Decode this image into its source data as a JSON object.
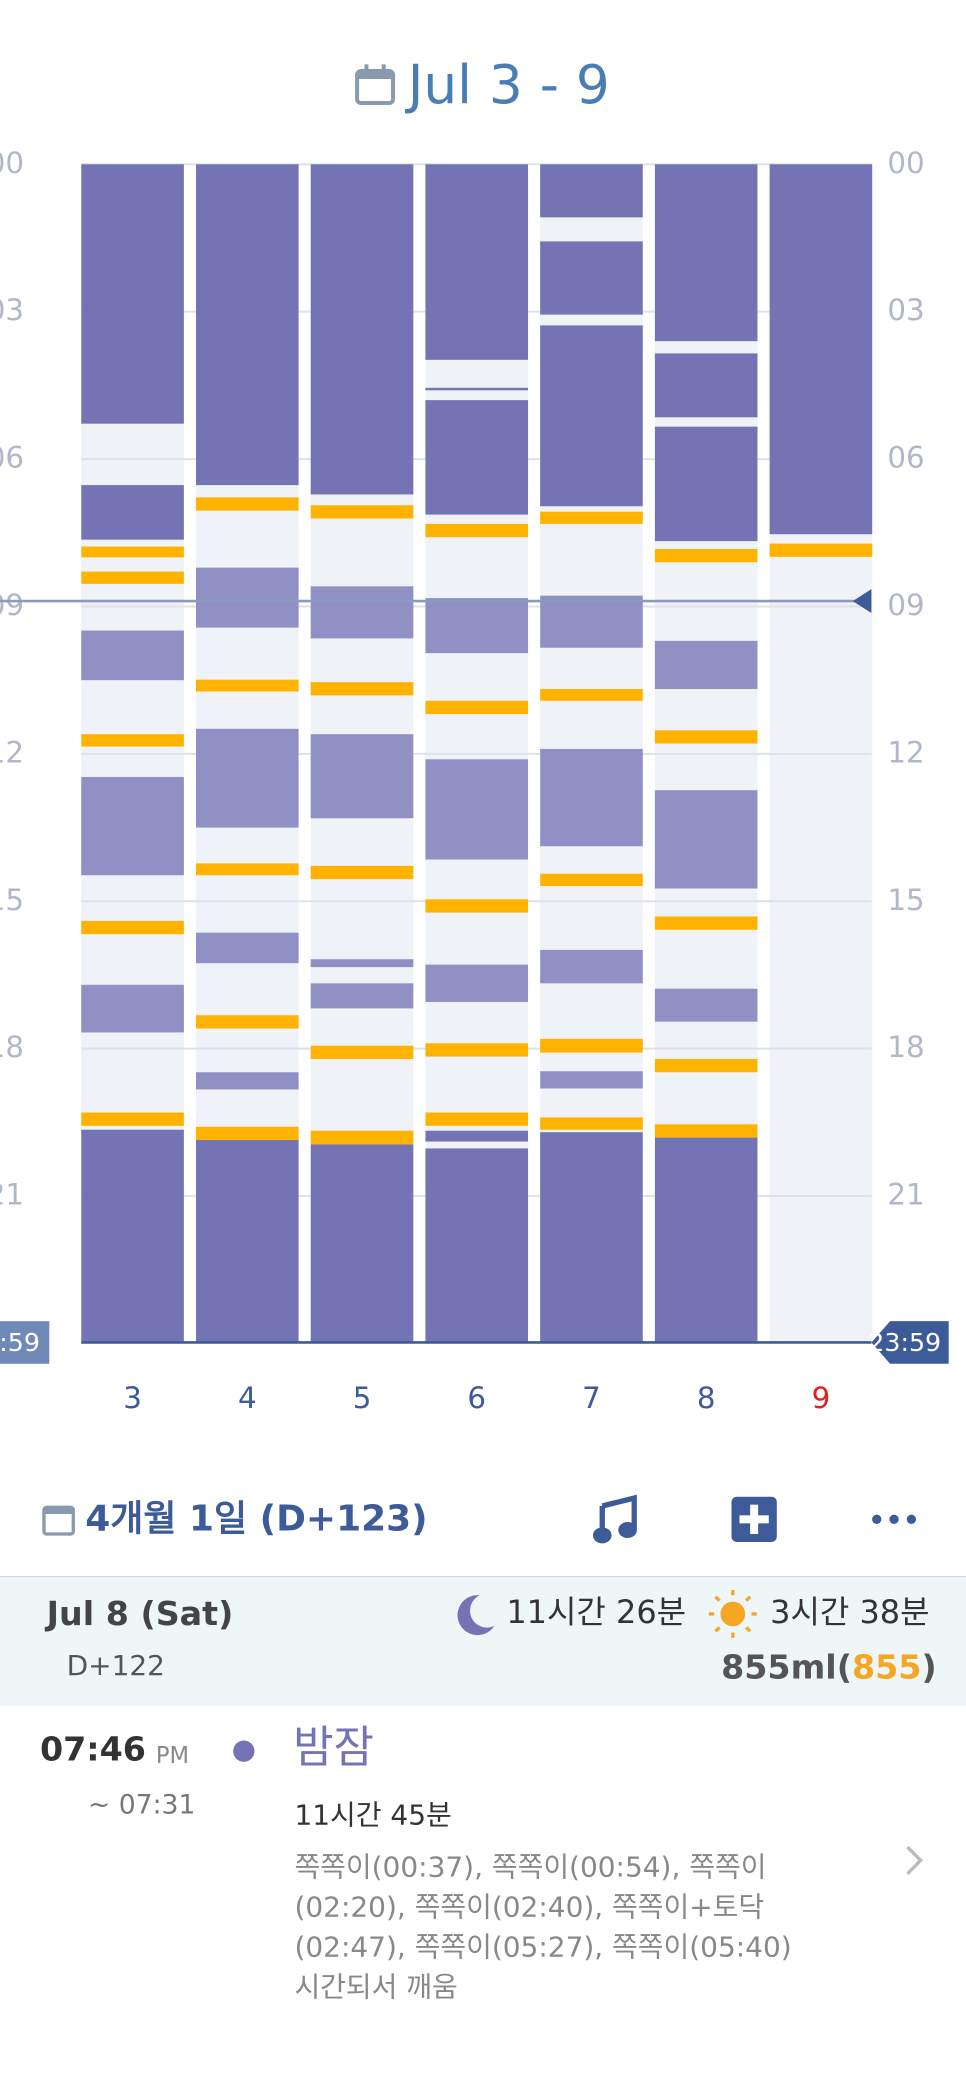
{
  "top": {
    "title": "Jul 3 - 9"
  },
  "chart": {
    "ylim": [
      0,
      24
    ],
    "yticks": [
      {
        "value": 0,
        "label": "00"
      },
      {
        "value": 3,
        "label": "03"
      },
      {
        "value": 6,
        "label": "06"
      },
      {
        "value": 9,
        "label": "09"
      },
      12,
      15,
      18,
      21
    ],
    "end_tick": {
      "value": 23.98,
      "label": "23:59"
    },
    "now": 8.89,
    "colors": {
      "night": "#7474b4",
      "nap": "#9090c4",
      "feed": "#ffb300",
      "background": "#eff2f6",
      "label": "#3d5a99",
      "today": "#e02020"
    },
    "days": [
      {
        "label": "3",
        "segments": [
          [
            "night",
            0,
            5.28
          ],
          [
            "night",
            6.53,
            7.64
          ],
          [
            "feed",
            7.78,
            8.0
          ],
          [
            "feed",
            8.29,
            8.54
          ],
          [
            "nap",
            9.49,
            10.5
          ],
          [
            "feed",
            11.6,
            11.85
          ],
          [
            "nap",
            12.47,
            14.47
          ],
          [
            "feed",
            15.4,
            15.67
          ],
          [
            "nap",
            16.7,
            17.67
          ],
          [
            "feed",
            19.3,
            19.57
          ],
          [
            "night",
            19.65,
            24
          ]
        ]
      },
      {
        "label": "4",
        "segments": [
          [
            "night",
            0,
            6.53
          ],
          [
            "feed",
            6.78,
            7.05
          ],
          [
            "nap",
            8.21,
            9.43
          ],
          [
            "feed",
            10.49,
            10.73
          ],
          [
            "nap",
            11.49,
            13.5
          ],
          [
            "feed",
            14.23,
            14.47
          ],
          [
            "nap",
            15.64,
            16.26
          ],
          [
            "feed",
            17.32,
            17.59
          ],
          [
            "nap",
            18.48,
            18.83
          ],
          [
            "feed",
            19.59,
            19.86
          ],
          [
            "night",
            19.86,
            24
          ]
        ]
      },
      {
        "label": "5",
        "segments": [
          [
            "night",
            0,
            6.72
          ],
          [
            "feed",
            6.94,
            7.21
          ],
          [
            "nap",
            8.59,
            9.65
          ],
          [
            "feed",
            10.54,
            10.81
          ],
          [
            "nap",
            11.6,
            13.31
          ],
          [
            "feed",
            14.28,
            14.55
          ],
          [
            "nap",
            16.18,
            16.34
          ],
          [
            "nap",
            16.67,
            17.18
          ],
          [
            "feed",
            17.94,
            18.21
          ],
          [
            "feed",
            19.67,
            19.95
          ],
          [
            "night",
            19.95,
            24
          ]
        ]
      },
      {
        "label": "6",
        "segments": [
          [
            "night",
            0,
            3.98
          ],
          [
            "night",
            4.55,
            4.6
          ],
          [
            "night",
            4.8,
            7.13
          ],
          [
            "feed",
            7.32,
            7.59
          ],
          [
            "nap",
            8.83,
            9.95
          ],
          [
            "feed",
            10.92,
            11.19
          ],
          [
            "nap",
            12.11,
            14.15
          ],
          [
            "feed",
            14.96,
            15.23
          ],
          [
            "nap",
            16.29,
            17.05
          ],
          [
            "feed",
            17.89,
            18.16
          ],
          [
            "feed",
            19.3,
            19.57
          ],
          [
            "night",
            19.67,
            19.89
          ],
          [
            "night",
            20.03,
            24
          ]
        ]
      },
      {
        "label": "7",
        "segments": [
          [
            "night",
            0,
            1.08
          ],
          [
            "night",
            1.57,
            3.06
          ],
          [
            "night",
            3.28,
            6.96
          ],
          [
            "feed",
            7.07,
            7.32
          ],
          [
            "nap",
            8.78,
            9.84
          ],
          [
            "feed",
            10.68,
            10.92
          ],
          [
            "nap",
            11.9,
            13.88
          ],
          [
            "feed",
            14.44,
            14.69
          ],
          [
            "nap",
            15.99,
            16.67
          ],
          [
            "feed",
            17.8,
            18.08
          ],
          [
            "nap",
            18.46,
            18.81
          ],
          [
            "feed",
            19.4,
            19.65
          ],
          [
            "night",
            19.7,
            24
          ]
        ]
      },
      {
        "label": "8",
        "segments": [
          [
            "night",
            0,
            3.6
          ],
          [
            "night",
            3.85,
            5.15
          ],
          [
            "night",
            5.34,
            7.67
          ],
          [
            "feed",
            7.83,
            8.1
          ],
          [
            "nap",
            9.7,
            10.68
          ],
          [
            "feed",
            11.52,
            11.79
          ],
          [
            "nap",
            12.74,
            14.74
          ],
          [
            "feed",
            15.31,
            15.58
          ],
          [
            "nap",
            16.78,
            17.45
          ],
          [
            "feed",
            18.21,
            18.48
          ],
          [
            "feed",
            19.54,
            19.81
          ],
          [
            "night",
            19.81,
            24
          ]
        ]
      },
      {
        "label": "9",
        "today": true,
        "segments": [
          [
            "night",
            0,
            7.53
          ],
          [
            "feed",
            7.72,
            7.99
          ]
        ]
      }
    ]
  },
  "header": {
    "date": "4개월 1일 (D+123)"
  },
  "summary": {
    "date": "Jul 8 (Sat)",
    "dday": "D+122",
    "night_sleep": "11시간 26분",
    "day_sleep": "3시간 38분",
    "volume": "855ml",
    "volume_open": "(",
    "volume_detail": "855",
    "volume_close": ")"
  },
  "entry": {
    "time": "07:46",
    "ampm": "PM",
    "end": "~ 07:31",
    "title": "밤잠",
    "duration": "11시간 45분",
    "notes": [
      "쪽쪽이(00:37), 쪽쪽이(00:54), 쪽쪽이",
      "(02:20), 쪽쪽이(02:40), 쪽쪽이+토닥",
      "(02:47), 쪽쪽이(05:27), 쪽쪽이(05:40)",
      "시간되서 깨움"
    ]
  }
}
